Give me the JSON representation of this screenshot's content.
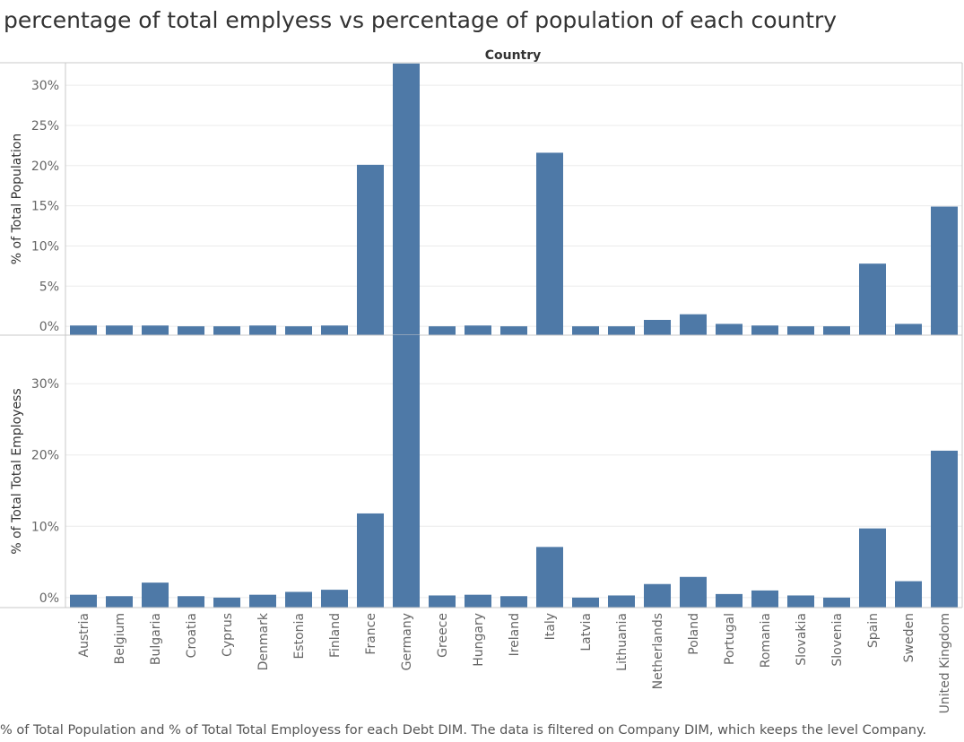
{
  "title": "percentage of total emplyess vs percentage of population of each country",
  "caption": "% of Total Population and % of Total Total Employess for each Debt DIM.  The data is filtered on Company DIM, which keeps the level Company.",
  "colors": {
    "bar": "#4e79a7",
    "grid": "#ebebeb",
    "axis": "#c8c8c8",
    "tick_text": "#666666",
    "label_text": "#333333"
  },
  "chart_data": {
    "type": "bar",
    "column_header": "Country",
    "categories": [
      "Austria",
      "Belgium",
      "Bulgaria",
      "Croatia",
      "Cyprus",
      "Denmark",
      "Estonia",
      "Finland",
      "France",
      "Germany",
      "Greece",
      "Hungary",
      "Ireland",
      "Italy",
      "Latvia",
      "Lithuania",
      "Netherlands",
      "Poland",
      "Portugal",
      "Romania",
      "Slovakia",
      "Slovenia",
      "Spain",
      "Sweden",
      "United Kingdom"
    ],
    "panels": [
      {
        "ylabel": "% of Total Population",
        "ylim": [
          -1.1,
          32.8
        ],
        "ticks": [
          0,
          5,
          10,
          15,
          20,
          25,
          30
        ],
        "tick_labels": [
          "0%",
          "5%",
          "10%",
          "15%",
          "20%",
          "25%",
          "30%"
        ],
        "values": [
          0.1,
          0.1,
          0.1,
          0.0,
          0.0,
          0.1,
          0.0,
          0.1,
          20.1,
          32.7,
          0.0,
          0.1,
          0.0,
          21.6,
          0.0,
          0.0,
          0.8,
          1.5,
          0.3,
          0.1,
          0.0,
          0.0,
          7.8,
          0.3,
          14.9
        ]
      },
      {
        "ylabel": "% of Total Total Employess",
        "ylim": [
          -1.4,
          36.8
        ],
        "ticks": [
          0,
          10,
          20,
          30
        ],
        "tick_labels": [
          "0%",
          "10%",
          "20%",
          "30%"
        ],
        "values": [
          0.4,
          0.2,
          2.1,
          0.2,
          0.0,
          0.4,
          0.8,
          1.1,
          11.8,
          36.8,
          0.3,
          0.4,
          0.2,
          7.1,
          0.0,
          0.3,
          1.9,
          2.9,
          0.5,
          1.0,
          0.3,
          0.0,
          9.7,
          2.3,
          20.6
        ]
      }
    ],
    "grid": true,
    "legend": "none"
  }
}
